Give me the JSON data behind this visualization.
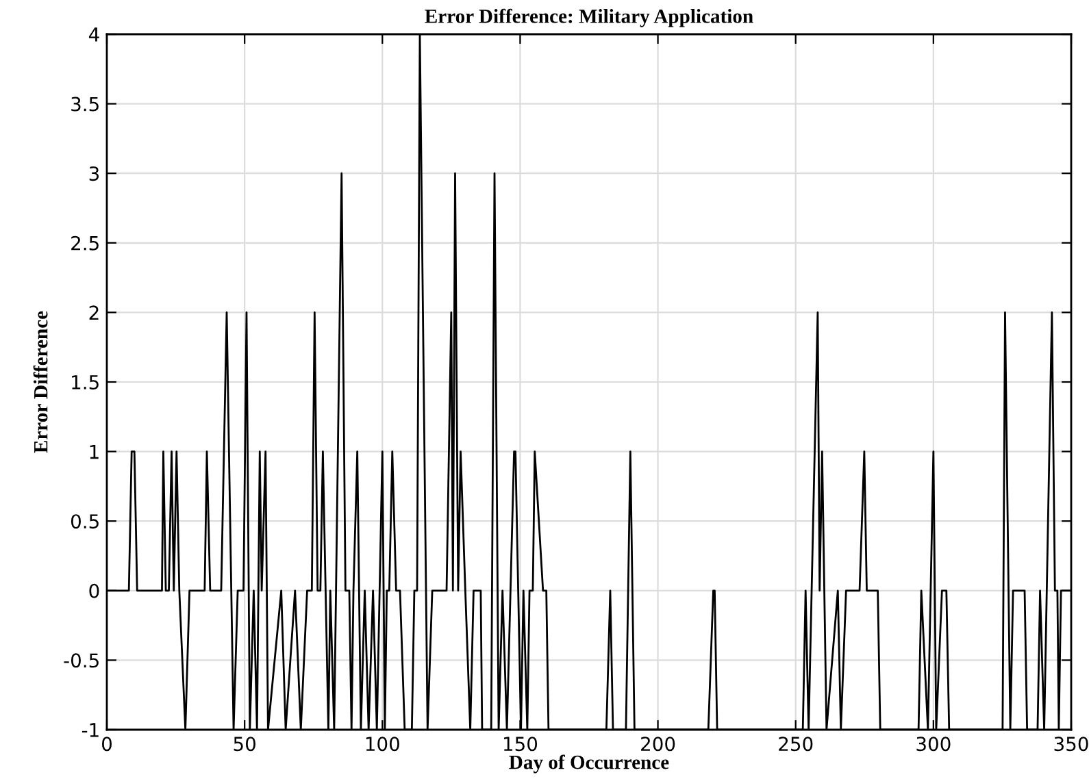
{
  "chart_data": {
    "type": "line",
    "title": "Error Difference: Military Application",
    "xlabel": "Day of Occurrence",
    "ylabel": "Error Difference",
    "series": [
      {
        "color": "#000000",
        "x": [
          0,
          8,
          9,
          10,
          11,
          20,
          20.5,
          21.4,
          22.5,
          23.5,
          24.3,
          25.3,
          26.3,
          28.5,
          30,
          35.5,
          36.3,
          37.5,
          41.5,
          43.5,
          46,
          47.5,
          49.6,
          50.7,
          51.9,
          53.3,
          54.5,
          55.5,
          56.2,
          57.6,
          58.5,
          63.3,
          64.9,
          68.3,
          70.4,
          72.7,
          74.4,
          75.4,
          76.5,
          77.5,
          78.4,
          80.4,
          81.1,
          82.5,
          85.2,
          86.6,
          88,
          88.8,
          89.5,
          90.9,
          92.2,
          93.6,
          95,
          96.6,
          98,
          100,
          100.9,
          101.6,
          102.5,
          103.6,
          105,
          106.4,
          108.1,
          110.7,
          111.6,
          112.6,
          113.6,
          116.4,
          118.1,
          123.3,
          125,
          125.6,
          126.4,
          127.5,
          128.4,
          130.1,
          131.9,
          133.1,
          135.7,
          136.2,
          139.5,
          140.7,
          142.2,
          143.6,
          145.2,
          147.8,
          148.3,
          150.3,
          151.2,
          152.6,
          153.4,
          154.6,
          155.3,
          158.3,
          159.5,
          160.3,
          181.3,
          182.7,
          183.7,
          188.4,
          190,
          191.5,
          218.3,
          220.1,
          220.6,
          221.5,
          252.6,
          253.6,
          254.7,
          258,
          258.7,
          259.6,
          261.2,
          265.3,
          266.4,
          268.3,
          273.2,
          274.9,
          275.8,
          279.8,
          280.7,
          294.6,
          295.6,
          298,
          300,
          301,
          303.1,
          304.7,
          305.7,
          325.1,
          326,
          327.9,
          328.9,
          333.1,
          334,
          337.8,
          338.7,
          340.2,
          343,
          344.1,
          345,
          345.5,
          346.3,
          350
        ],
        "values": [
          0,
          0,
          1,
          1,
          0,
          0,
          1,
          0,
          0,
          1,
          0,
          1,
          0,
          -1,
          0,
          0,
          1,
          0,
          0,
          2,
          -1,
          0,
          0,
          2,
          -1,
          0,
          -1,
          1,
          0,
          1,
          -1,
          0,
          -1,
          0,
          -1,
          0,
          0,
          2,
          0,
          0,
          1,
          -1,
          0,
          -1,
          3,
          0,
          0,
          -1,
          0,
          1,
          -1,
          0,
          -1,
          0,
          -1,
          1,
          -1,
          0,
          0,
          1,
          0,
          0,
          -1,
          -1,
          0,
          0,
          4,
          -1,
          0,
          0,
          2,
          0,
          3,
          0,
          1,
          0,
          -1,
          0,
          0,
          -1,
          -1,
          3,
          -1,
          0,
          -1,
          1,
          1,
          -1,
          0,
          -1,
          0,
          0,
          1,
          0,
          0,
          -1,
          -1,
          0,
          -1,
          -1,
          1,
          -1,
          -1,
          0,
          0,
          -1,
          -1,
          0,
          -1,
          2,
          0,
          1,
          -1,
          0,
          -1,
          0,
          0,
          1,
          0,
          0,
          -1,
          -1,
          0,
          -1,
          1,
          -1,
          0,
          0,
          -1,
          -1,
          2,
          -1,
          0,
          0,
          -1,
          -1,
          0,
          -1,
          2,
          0,
          0,
          -1,
          0,
          0
        ]
      }
    ],
    "xlim": [
      0,
      350
    ],
    "xticks": [
      0,
      50,
      100,
      150,
      200,
      250,
      300,
      350
    ],
    "ylim": [
      -1,
      4
    ],
    "yticks": [
      -1,
      -0.5,
      0,
      0.5,
      1,
      1.5,
      2,
      2.5,
      3,
      3.5,
      4
    ],
    "grid": true,
    "marker": "none",
    "line_style": "solid"
  }
}
